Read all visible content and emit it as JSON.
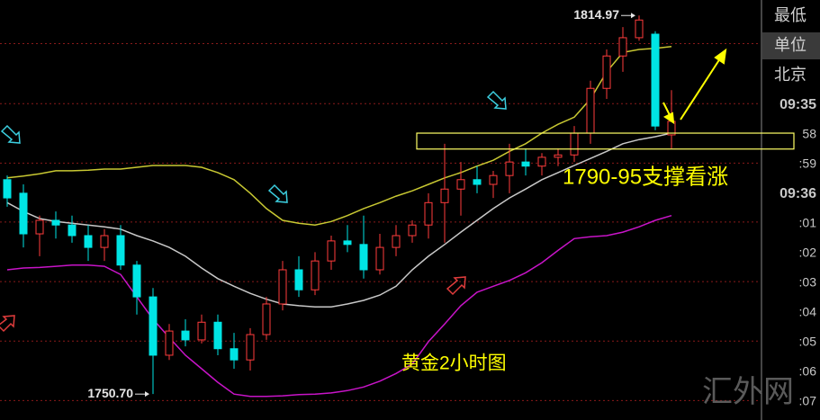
{
  "chart_data": {
    "type": "candlestick",
    "ylim": [
      1746.3,
      1817.6
    ],
    "grid_levels": [
      1810.2,
      1800.0,
      1789.9,
      1779.9,
      1769.8,
      1759.7,
      1749.6
    ],
    "grid": true,
    "candles": {
      "up_color": "#ff3c3c",
      "down_color": "#00e5e5",
      "open": [
        1787.1,
        1784.8,
        1777.9,
        1780.2,
        1779.4,
        1777.6,
        1775.6,
        1777.6,
        1772.6,
        1767.2,
        1757.3,
        1761.4,
        1759.9,
        1762.9,
        1758.4,
        1756.5,
        1760.8,
        1766.0,
        1771.8,
        1768.4,
        1773.3,
        1776.7,
        1776.1,
        1771.8,
        1775.6,
        1777.6,
        1779.4,
        1783.2,
        1785.5,
        1787.1,
        1786.3,
        1787.8,
        1790.1,
        1789.4,
        1790.9,
        1791.3,
        1795.0,
        1802.6,
        1808.1,
        1811.2,
        1811.8,
        1794.7
      ],
      "high": [
        1787.8,
        1786.3,
        1781.0,
        1781.7,
        1781.0,
        1779.4,
        1778.7,
        1779.4,
        1773.3,
        1768.7,
        1762.6,
        1763.4,
        1764.2,
        1764.2,
        1761.1,
        1761.9,
        1767.2,
        1773.3,
        1774.1,
        1774.8,
        1777.6,
        1779.4,
        1781.0,
        1777.9,
        1779.4,
        1780.2,
        1784.8,
        1793.2,
        1790.1,
        1789.4,
        1788.6,
        1793.2,
        1792.4,
        1791.6,
        1792.4,
        1796.2,
        1803.9,
        1809.2,
        1813.0,
        1814.97,
        1812.3,
        1802.3
      ],
      "low": [
        1782.5,
        1775.6,
        1774.1,
        1777.1,
        1776.4,
        1773.3,
        1773.3,
        1771.8,
        1764.2,
        1750.7,
        1756.5,
        1758.8,
        1759.3,
        1757.3,
        1755.0,
        1754.7,
        1759.9,
        1764.9,
        1767.2,
        1767.5,
        1771.8,
        1774.8,
        1770.3,
        1771.0,
        1774.1,
        1776.4,
        1777.1,
        1776.4,
        1781.0,
        1784.8,
        1784.0,
        1784.8,
        1787.8,
        1787.8,
        1789.4,
        1790.1,
        1793.2,
        1800.8,
        1805.4,
        1810.7,
        1795.5,
        1792.4
      ],
      "close": [
        1784.0,
        1777.9,
        1780.2,
        1779.4,
        1777.6,
        1775.6,
        1777.6,
        1772.6,
        1767.2,
        1757.3,
        1761.4,
        1759.9,
        1762.9,
        1758.4,
        1756.5,
        1760.8,
        1766.0,
        1771.8,
        1768.4,
        1773.3,
        1776.7,
        1776.1,
        1771.8,
        1775.6,
        1777.6,
        1779.4,
        1783.2,
        1785.5,
        1787.1,
        1786.3,
        1787.8,
        1790.1,
        1789.4,
        1790.9,
        1791.3,
        1795.0,
        1802.6,
        1808.1,
        1811.2,
        1814.2,
        1796.2,
        1797.0
      ]
    },
    "bands": [
      {
        "color": "#c8c832",
        "values": [
          1787.4,
          1787.7,
          1788.1,
          1788.6,
          1788.6,
          1788.7,
          1788.9,
          1788.9,
          1789.2,
          1789.5,
          1789.5,
          1789.5,
          1789.2,
          1788.3,
          1787.1,
          1784.8,
          1782.2,
          1780.2,
          1779.7,
          1779.4,
          1780.0,
          1781.0,
          1782.2,
          1783.2,
          1784.3,
          1785.2,
          1786.3,
          1787.4,
          1788.3,
          1789.4,
          1790.4,
          1791.9,
          1793.2,
          1795.0,
          1796.5,
          1797.7,
          1800.8,
          1805.4,
          1808.7,
          1809.2,
          1809.4,
          1809.7
        ]
      },
      {
        "color": "#c8c8c8",
        "values": [
          1783.2,
          1781.7,
          1780.5,
          1780.0,
          1779.7,
          1779.4,
          1779.1,
          1778.7,
          1777.6,
          1776.7,
          1775.6,
          1774.1,
          1772.1,
          1770.3,
          1769.0,
          1767.8,
          1766.8,
          1766.0,
          1765.7,
          1765.5,
          1765.5,
          1766.0,
          1766.6,
          1767.5,
          1769.0,
          1771.8,
          1774.1,
          1776.1,
          1778.2,
          1780.2,
          1782.2,
          1784.0,
          1785.5,
          1787.1,
          1788.3,
          1789.5,
          1790.7,
          1791.9,
          1793.2,
          1793.9,
          1794.4,
          1795.0
        ]
      },
      {
        "color": "#c814c8",
        "values": [
          1771.8,
          1772.1,
          1772.2,
          1772.4,
          1772.6,
          1772.6,
          1772.4,
          1771.0,
          1767.2,
          1763.4,
          1760.3,
          1757.3,
          1755.0,
          1752.7,
          1750.7,
          1750.3,
          1750.3,
          1750.4,
          1750.6,
          1750.7,
          1750.9,
          1751.3,
          1751.9,
          1752.9,
          1754.2,
          1755.8,
          1759.6,
          1762.6,
          1765.7,
          1768.0,
          1769.0,
          1770.0,
          1771.3,
          1773.0,
          1775.1,
          1777.1,
          1777.4,
          1777.6,
          1778.2,
          1779.1,
          1780.2,
          1781.0
        ]
      }
    ],
    "support_zone": [
      1792.3,
      1795.0
    ],
    "high_label": "1814.97",
    "low_label": "1750.70",
    "annotations": [
      "1790-95支撑看涨",
      "黄金2小时图"
    ],
    "watermark": "汇外网"
  },
  "side_panel": {
    "labels": [
      "最低",
      "单位",
      "北京",
      "09:35",
      "58",
      ":59",
      "09:36",
      ":01",
      ":02",
      ":03",
      ":04",
      ":05",
      ":06",
      ":07"
    ]
  }
}
